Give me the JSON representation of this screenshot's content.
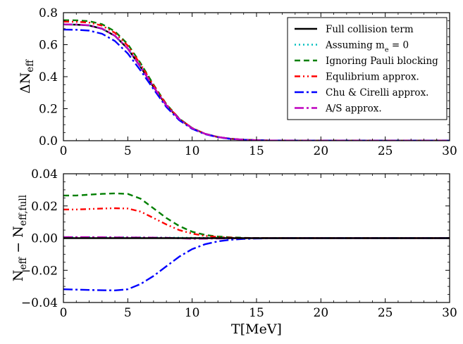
{
  "chart_data": [
    {
      "type": "line",
      "panel": "top",
      "xlabel": "",
      "ylabel": "ΔN_eff",
      "xlim": [
        0,
        30
      ],
      "ylim": [
        0,
        0.8
      ],
      "xticks": [
        0,
        5,
        10,
        15,
        20,
        25,
        30
      ],
      "yticks": [
        0.0,
        0.2,
        0.4,
        0.6,
        0.8
      ],
      "xtick_labels": [
        "0",
        "5",
        "10",
        "15",
        "20",
        "25",
        "30"
      ],
      "ytick_labels": [
        "0.0",
        "0.2",
        "0.4",
        "0.6",
        "0.8"
      ],
      "legend": {
        "placement": "top-right",
        "entries": [
          "Full collision term",
          "Assuming m_e = 0",
          "Ignoring Pauli blocking",
          "Equlibrium approx.",
          "Chu & Cirelli approx.",
          "A/S approx."
        ]
      },
      "series": [
        {
          "name": "Full collision term",
          "color": "#000000",
          "style": "solid",
          "x": [
            0,
            1,
            2,
            3,
            4,
            5,
            6,
            7,
            8,
            9,
            10,
            11,
            12,
            13,
            14,
            15,
            16,
            17,
            18,
            20,
            22,
            25,
            30
          ],
          "values": [
            0.726,
            0.725,
            0.72,
            0.7,
            0.655,
            0.575,
            0.46,
            0.335,
            0.22,
            0.135,
            0.078,
            0.043,
            0.023,
            0.012,
            0.006,
            0.003,
            0.0015,
            0.0008,
            0.0004,
            0.0001,
            0,
            0,
            0
          ]
        },
        {
          "name": "Assuming m_e = 0",
          "color": "#00bfbf",
          "style": "dotted",
          "x": [
            0,
            1,
            2,
            3,
            4,
            5,
            6,
            7,
            8,
            9,
            10,
            11,
            12,
            13,
            14,
            15,
            16,
            17,
            18,
            20,
            22,
            25,
            30
          ],
          "values": [
            0.727,
            0.726,
            0.721,
            0.701,
            0.656,
            0.576,
            0.461,
            0.336,
            0.221,
            0.136,
            0.078,
            0.043,
            0.023,
            0.012,
            0.006,
            0.003,
            0.0015,
            0.0008,
            0.0004,
            0.0001,
            0,
            0,
            0
          ]
        },
        {
          "name": "Ignoring Pauli blocking",
          "color": "#007f00",
          "style": "dashed",
          "x": [
            0,
            1,
            2,
            3,
            4,
            5,
            6,
            7,
            8,
            9,
            10,
            11,
            12,
            13,
            14,
            15,
            16,
            17,
            18,
            20,
            22,
            25,
            30
          ],
          "values": [
            0.753,
            0.752,
            0.747,
            0.728,
            0.683,
            0.603,
            0.483,
            0.35,
            0.228,
            0.138,
            0.079,
            0.043,
            0.023,
            0.012,
            0.006,
            0.003,
            0.0015,
            0.0008,
            0.0004,
            0.0001,
            0,
            0,
            0
          ]
        },
        {
          "name": "Equlibrium approx.",
          "color": "#ff0000",
          "style": "dashdotdot",
          "x": [
            0,
            1,
            2,
            3,
            4,
            5,
            6,
            7,
            8,
            9,
            10,
            11,
            12,
            13,
            14,
            15,
            16,
            17,
            18,
            20,
            22,
            25,
            30
          ],
          "values": [
            0.744,
            0.743,
            0.738,
            0.719,
            0.674,
            0.594,
            0.476,
            0.346,
            0.226,
            0.137,
            0.079,
            0.043,
            0.023,
            0.012,
            0.006,
            0.003,
            0.0015,
            0.0008,
            0.0004,
            0.0001,
            0,
            0,
            0
          ]
        },
        {
          "name": "Chu & Cirelli approx.",
          "color": "#0000ff",
          "style": "dashdot",
          "x": [
            0,
            1,
            2,
            3,
            4,
            5,
            6,
            7,
            8,
            9,
            10,
            11,
            12,
            13,
            14,
            15,
            16,
            17,
            18,
            20,
            22,
            25,
            30
          ],
          "values": [
            0.694,
            0.693,
            0.688,
            0.668,
            0.623,
            0.545,
            0.438,
            0.322,
            0.21,
            0.128,
            0.074,
            0.041,
            0.022,
            0.011,
            0.0055,
            0.0028,
            0.0014,
            0.0007,
            0.0004,
            0.0001,
            0,
            0,
            0
          ]
        },
        {
          "name": "A/S approx.",
          "color": "#bf00bf",
          "style": "dashdot",
          "x": [
            0,
            1,
            2,
            3,
            4,
            5,
            6,
            7,
            8,
            9,
            10,
            11,
            12,
            13,
            14,
            15,
            16,
            17,
            18,
            20,
            22,
            25,
            30
          ],
          "values": [
            0.727,
            0.726,
            0.721,
            0.701,
            0.656,
            0.576,
            0.461,
            0.336,
            0.221,
            0.135,
            0.078,
            0.043,
            0.023,
            0.012,
            0.006,
            0.003,
            0.0015,
            0.0008,
            0.0004,
            0.0001,
            0,
            0,
            0
          ]
        }
      ]
    },
    {
      "type": "line",
      "panel": "bottom",
      "xlabel": "T[MeV]",
      "ylabel": "N_eff − N_eff,full",
      "xlim": [
        0,
        30
      ],
      "ylim": [
        -0.04,
        0.04
      ],
      "xticks": [
        0,
        5,
        10,
        15,
        20,
        25,
        30
      ],
      "yticks": [
        -0.04,
        -0.02,
        0.0,
        0.02,
        0.04
      ],
      "xtick_labels": [
        "0",
        "5",
        "10",
        "15",
        "20",
        "25",
        "30"
      ],
      "ytick_labels": [
        "−0.04",
        "−0.02",
        "0.00",
        "0.02",
        "0.04"
      ],
      "series": [
        {
          "name": "Assuming m_e = 0",
          "color": "#00bfbf",
          "style": "dotted",
          "x": [
            0,
            5,
            10,
            15,
            20,
            25,
            30
          ],
          "values": [
            0.0006,
            0.0005,
            0.0002,
            0,
            0,
            0,
            0
          ]
        },
        {
          "name": "Ignoring Pauli blocking",
          "color": "#007f00",
          "style": "dashed",
          "x": [
            0,
            1,
            2,
            3,
            4,
            5,
            6,
            7,
            8,
            9,
            10,
            11,
            12,
            13,
            14,
            15,
            16,
            17,
            18,
            20,
            22,
            25,
            30
          ],
          "values": [
            0.0265,
            0.0265,
            0.027,
            0.0275,
            0.0278,
            0.0275,
            0.0245,
            0.0185,
            0.0125,
            0.0075,
            0.004,
            0.002,
            0.001,
            0.0005,
            0.0002,
            0.0001,
            0,
            0,
            0,
            0,
            0,
            0,
            0
          ]
        },
        {
          "name": "Equlibrium approx.",
          "color": "#ff0000",
          "style": "dashdotdot",
          "x": [
            0,
            1,
            2,
            3,
            4,
            5,
            6,
            7,
            8,
            9,
            10,
            11,
            12,
            13,
            14,
            15,
            16,
            17,
            18,
            20,
            22,
            25,
            30
          ],
          "values": [
            0.0178,
            0.0178,
            0.0181,
            0.0184,
            0.0186,
            0.0184,
            0.0165,
            0.0125,
            0.0085,
            0.005,
            0.0028,
            0.0014,
            0.0007,
            0.0003,
            0.0001,
            5e-05,
            0,
            0,
            0,
            0,
            0,
            0,
            0
          ]
        },
        {
          "name": "Chu & Cirelli approx.",
          "color": "#0000ff",
          "style": "dashdot",
          "x": [
            0,
            1,
            2,
            3,
            4,
            5,
            6,
            7,
            8,
            9,
            10,
            11,
            12,
            13,
            14,
            15,
            16,
            17,
            18,
            20,
            22,
            25,
            30
          ],
          "values": [
            -0.0318,
            -0.032,
            -0.0322,
            -0.0324,
            -0.0325,
            -0.0318,
            -0.0285,
            -0.0235,
            -0.0175,
            -0.0115,
            -0.0068,
            -0.0038,
            -0.002,
            -0.001,
            -0.0005,
            -0.0002,
            -0.0001,
            0,
            0,
            0,
            0,
            0,
            0
          ]
        },
        {
          "name": "A/S approx.",
          "color": "#bf00bf",
          "style": "dashdot",
          "x": [
            0,
            2,
            4,
            6,
            8,
            10,
            12,
            15,
            20,
            25,
            30
          ],
          "values": [
            0.0006,
            0.0006,
            0.0005,
            0.0004,
            0.0002,
            -0.0004,
            -0.0002,
            0,
            0,
            0,
            0
          ]
        },
        {
          "name": "Full collision term",
          "color": "#000000",
          "style": "solid",
          "x": [
            0,
            30
          ],
          "values": [
            0,
            0
          ]
        }
      ]
    }
  ]
}
